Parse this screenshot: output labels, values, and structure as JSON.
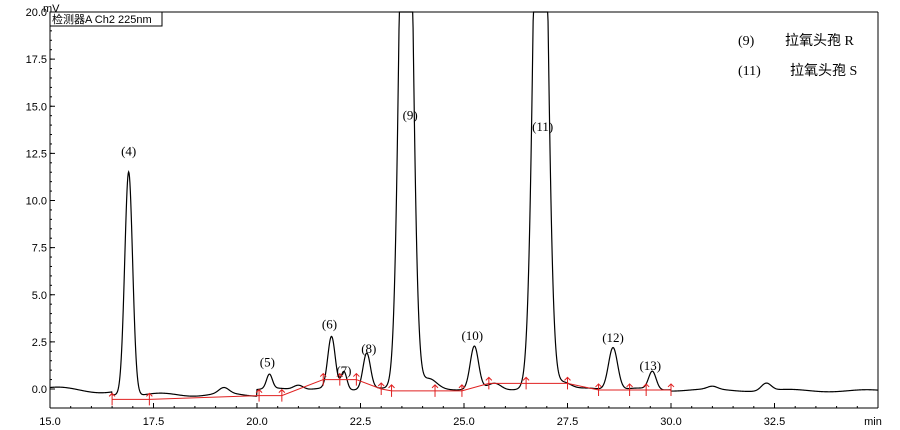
{
  "chart_data": {
    "type": "line",
    "ylabel": "mV",
    "xlabel": "min",
    "detector_label": "检测器A Ch2 225nm",
    "xlim": [
      15.0,
      35.0
    ],
    "ylim": [
      -0.5,
      20.0
    ],
    "x_ticks": [
      "15.0",
      "17.5",
      "20.0",
      "22.5",
      "25.0",
      "27.5",
      "30.0",
      "32.5",
      "min"
    ],
    "y_ticks": [
      "0.0",
      "2.5",
      "5.0",
      "7.5",
      "10.0",
      "12.5",
      "15.0",
      "17.5",
      "20.0"
    ],
    "legend": [
      {
        "id": "(9)",
        "name": "拉氧头孢 R"
      },
      {
        "id": "(11)",
        "name": "拉氧头孢 S"
      }
    ],
    "peaks": [
      {
        "label": "(4)",
        "rt": 16.9,
        "height": 11.5
      },
      {
        "label": "(5)",
        "rt": 20.3,
        "height": 0.4
      },
      {
        "label": "(6)",
        "rt": 21.8,
        "height": 2.5
      },
      {
        "label": "(7)",
        "rt": 22.1,
        "height": 0.7
      },
      {
        "label": "(8)",
        "rt": 22.65,
        "height": 1.5
      },
      {
        "label": "(9)",
        "rt": 23.6,
        "height": 20.0
      },
      {
        "label": "(10)",
        "rt": 25.25,
        "height": 1.9
      },
      {
        "label": "(11)",
        "rt": 26.85,
        "height": 20.0
      },
      {
        "label": "(12)",
        "rt": 28.6,
        "height": 1.8
      },
      {
        "label": "(13)",
        "rt": 29.55,
        "height": 0.6
      }
    ],
    "integration_markers": [
      16.5,
      17.4,
      20.05,
      20.6,
      21.6,
      22.0,
      22.4,
      23.0,
      23.25,
      24.3,
      24.95,
      25.6,
      26.5,
      27.5,
      28.25,
      29.0,
      29.4,
      30.0
    ]
  }
}
